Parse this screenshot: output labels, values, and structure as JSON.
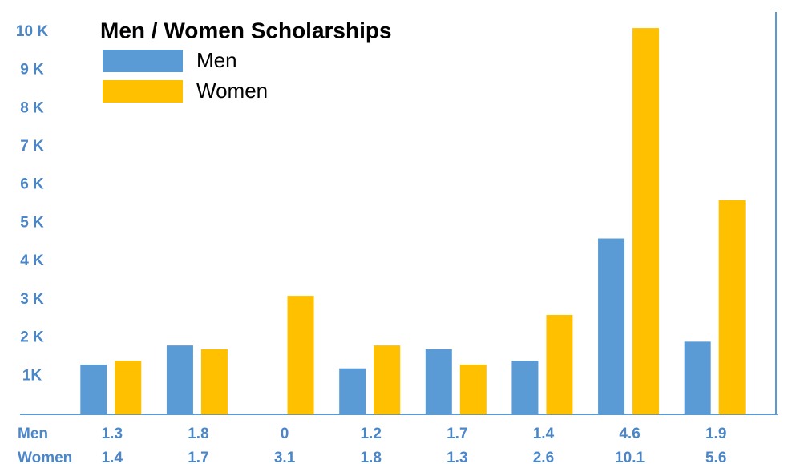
{
  "chart_data": {
    "type": "bar",
    "title": "Men / Women Scholarships",
    "series": [
      {
        "name": "Men",
        "color": "#5b9bd5",
        "values": [
          1.3,
          1.8,
          0,
          1.2,
          1.7,
          1.4,
          4.6,
          1.9
        ]
      },
      {
        "name": "Women",
        "color": "#ffc000",
        "values": [
          1.4,
          1.7,
          3.1,
          1.8,
          1.3,
          2.6,
          10.1,
          5.6
        ]
      }
    ],
    "ylim": [
      0,
      10.5
    ],
    "yticks": [
      {
        "value": 1,
        "label": "1K"
      },
      {
        "value": 2,
        "label": "2 K"
      },
      {
        "value": 3,
        "label": "3 K"
      },
      {
        "value": 4,
        "label": "4 K"
      },
      {
        "value": 5,
        "label": "5 K"
      },
      {
        "value": 6,
        "label": "6 K"
      },
      {
        "value": 7,
        "label": "7 K"
      },
      {
        "value": 8,
        "label": "8 K"
      },
      {
        "value": 9,
        "label": "9 K"
      },
      {
        "value": 10,
        "label": "10 K"
      }
    ],
    "grid": false,
    "legend": "top-left"
  }
}
